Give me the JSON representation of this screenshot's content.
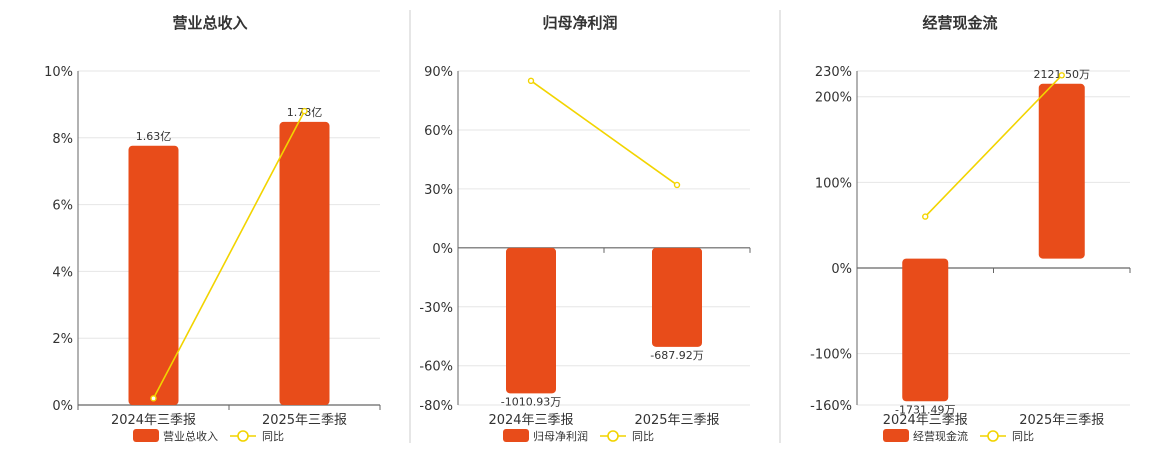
{
  "colors": {
    "bar": "#e84c1a",
    "line": "#f2d400",
    "grid": "#e6e6e6",
    "axis": "#666666",
    "divider": "#cccccc"
  },
  "chart_data": [
    {
      "type": "bar",
      "title": "营业总收入",
      "categories": [
        "2024年三季报",
        "2025年三季报"
      ],
      "bar_series": {
        "name": "营业总收入",
        "values": [
          1.63,
          1.78
        ],
        "labels": [
          "1.63亿",
          "1.78亿"
        ],
        "unit": "亿"
      },
      "line_series": {
        "name": "同比",
        "values": [
          0.2,
          8.8
        ]
      },
      "ylim": [
        0,
        10
      ],
      "yticks": [
        0,
        2,
        4,
        6,
        8,
        10
      ],
      "ytick_labels": [
        "0%",
        "2%",
        "4%",
        "6%",
        "8%",
        "10%"
      ],
      "bar_ylim": [
        0,
        2.1
      ],
      "legend_position": "bottom"
    },
    {
      "type": "bar",
      "title": "归母净利润",
      "categories": [
        "2024年三季报",
        "2025年三季报"
      ],
      "bar_series": {
        "name": "归母净利润",
        "values": [
          -1010.93,
          -687.92
        ],
        "labels": [
          "-1010.93万",
          "-687.92万"
        ],
        "unit": "万"
      },
      "line_series": {
        "name": "同比",
        "values": [
          85,
          32
        ]
      },
      "ylim": [
        -80,
        90
      ],
      "yticks": [
        -80,
        -60,
        -30,
        0,
        30,
        60,
        90
      ],
      "ytick_labels": [
        "-80%",
        "-60%",
        "-30%",
        "0%",
        "30%",
        "60%",
        "90%"
      ],
      "bar_ylim": [
        -1092,
        1229
      ],
      "legend_position": "bottom"
    },
    {
      "type": "bar",
      "title": "经营现金流",
      "categories": [
        "2024年三季报",
        "2025年三季报"
      ],
      "bar_series": {
        "name": "经营现金流",
        "values": [
          -1731.49,
          2121.5
        ],
        "labels": [
          "-1731.49万",
          "2121.50万"
        ],
        "unit": "万"
      },
      "line_series": {
        "name": "同比",
        "values": [
          60,
          225
        ]
      },
      "ylim": [
        -160,
        230
      ],
      "yticks": [
        -160,
        -100,
        0,
        100,
        200,
        230
      ],
      "ytick_labels": [
        "-160%",
        "-100%",
        "0%",
        "100%",
        "200%",
        "230%"
      ],
      "bar_ylim": [
        -1777,
        2277
      ],
      "legend_position": "bottom"
    }
  ]
}
